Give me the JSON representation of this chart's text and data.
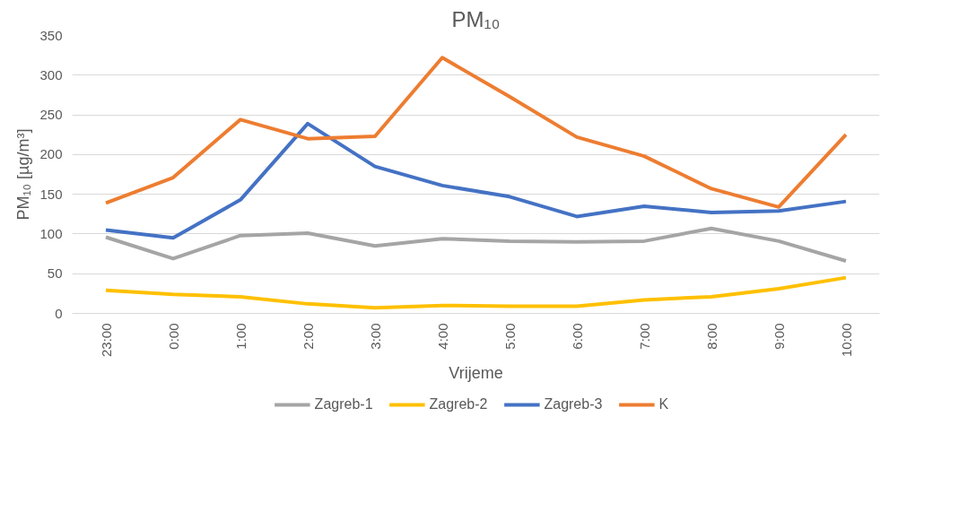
{
  "chart_data": {
    "type": "line",
    "title": "PM₁₀",
    "xlabel": "Vrijeme",
    "ylabel": "PM₁₀ [µg/m³]",
    "categories": [
      "23:00",
      "0:00",
      "1:00",
      "2:00",
      "3:00",
      "4:00",
      "5:00",
      "6:00",
      "7:00",
      "8:00",
      "9:00",
      "10:00"
    ],
    "series": [
      {
        "name": "Zagreb-1",
        "color": "#a5a5a5",
        "values": [
          96,
          69,
          98,
          101,
          85,
          94,
          91,
          90,
          91,
          107,
          91,
          66
        ]
      },
      {
        "name": "Zagreb-2",
        "color": "#ffc000",
        "values": [
          29,
          24,
          21,
          12,
          7,
          10,
          9,
          9,
          17,
          21,
          31,
          45
        ]
      },
      {
        "name": "Zagreb-3",
        "color": "#4472c4",
        "values": [
          105,
          95,
          143,
          239,
          185,
          161,
          147,
          122,
          135,
          127,
          129,
          141
        ]
      },
      {
        "name": "K",
        "color": "#ed7d31",
        "values": [
          139,
          171,
          244,
          220,
          223,
          322,
          273,
          222,
          198,
          157,
          134,
          225
        ]
      }
    ],
    "ylim": [
      0,
      350
    ],
    "yticks": [
      0,
      50,
      100,
      150,
      200,
      250,
      300,
      350
    ],
    "grid": "y",
    "legend": "bottom",
    "marker": "none",
    "line_style": "solid"
  }
}
